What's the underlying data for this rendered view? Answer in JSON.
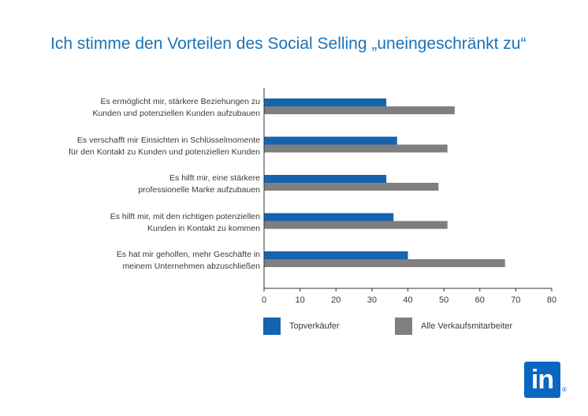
{
  "chart_data": {
    "type": "bar",
    "orientation": "horizontal",
    "title": "Ich stimme den Vorteilen des Social Selling „uneingeschränkt zu“",
    "categories": [
      [
        "Es ermöglicht mir, stärkere Beziehungen zu",
        "Kunden und potenziellen Kunden aufzubauen"
      ],
      [
        "Es verschafft mir Einsichten in Schlüsselmomente",
        "für den Kontakt zu Kunden und potenziellen Kunden"
      ],
      [
        "Es hilft mir, eine stärkere",
        "professionelle Marke aufzubauen"
      ],
      [
        "Es hilft mir, mit den richtigen potenziellen",
        "Kunden in Kontakt zu kommen"
      ],
      [
        "Es hat mir geholfen, mehr Geschäfte in",
        "meinem Unternehmen abzuschließen"
      ]
    ],
    "series": [
      {
        "name": "Topverkäufer",
        "color": "#1464b0",
        "values": [
          34,
          37,
          34,
          36,
          40
        ]
      },
      {
        "name": "Alle Verkaufsmitarbeiter",
        "color": "#7f7f7f",
        "values": [
          53,
          51,
          48.5,
          51,
          67
        ]
      }
    ],
    "xlim": [
      0,
      80
    ],
    "xticks": [
      0,
      10,
      20,
      30,
      40,
      50,
      60,
      70,
      80
    ],
    "grid": false,
    "legend": "bottom"
  },
  "logo": {
    "text": "in",
    "mark": "®"
  }
}
